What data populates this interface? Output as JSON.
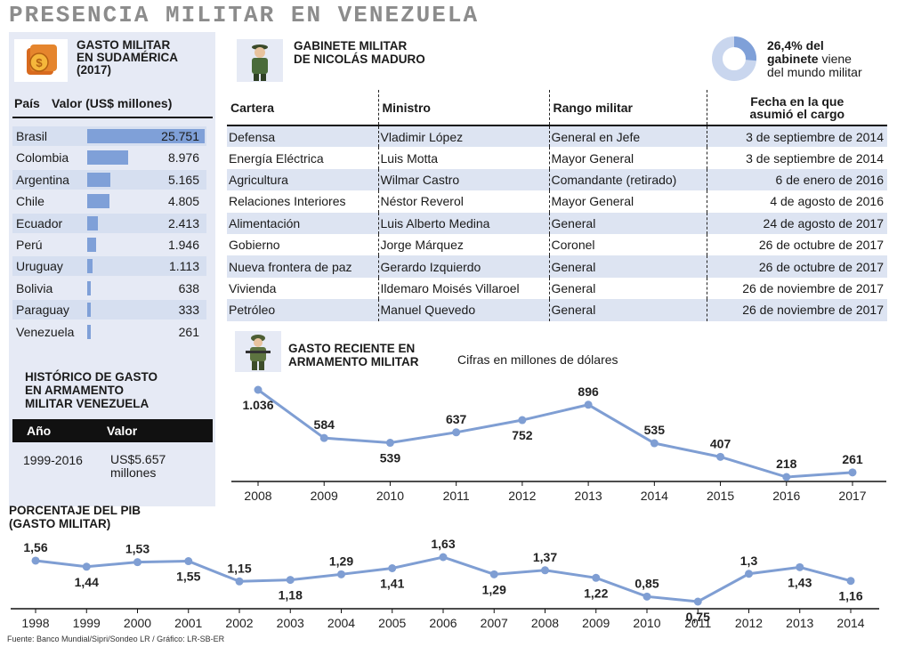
{
  "title": "PRESENCIA MILITAR EN VENEZUELA",
  "colors": {
    "accent": "#7fa0d8",
    "line": "#7f9ed3",
    "panel": "#e6eaf5",
    "row_alt": "#dde4f2"
  },
  "gasto_sudamerica": {
    "title_line1": "GASTO MILITAR",
    "title_line2": "EN SUDAMÉRICA",
    "title_line3": "(2017)",
    "col_country": "País",
    "col_value": "Valor (US$ millones)",
    "icon": "coin-stack-icon",
    "rows": [
      {
        "country": "Brasil",
        "value": "25.751",
        "num": 25751
      },
      {
        "country": "Colombia",
        "value": "8.976",
        "num": 8976
      },
      {
        "country": "Argentina",
        "value": "5.165",
        "num": 5165
      },
      {
        "country": "Chile",
        "value": "4.805",
        "num": 4805
      },
      {
        "country": "Ecuador",
        "value": "2.413",
        "num": 2413
      },
      {
        "country": "Perú",
        "value": "1.946",
        "num": 1946
      },
      {
        "country": "Uruguay",
        "value": "1.113",
        "num": 1113
      },
      {
        "country": "Bolivia",
        "value": "638",
        "num": 638
      },
      {
        "country": "Paraguay",
        "value": "333",
        "num": 333
      },
      {
        "country": "Venezuela",
        "value": "261",
        "num": 261
      }
    ]
  },
  "historico": {
    "title_line1": "HISTÓRICO DE GASTO",
    "title_line2": "EN ARMAMENTO",
    "title_line3": "MILITAR VENEZUELA",
    "col_year": "Año",
    "col_value": "Valor",
    "period": "1999-2016",
    "value_line1": "US$5.657",
    "value_line2": "millones"
  },
  "gabinete": {
    "title_line1": "GABINETE MILITAR",
    "title_line2": "DE NICOLÁS MADURO",
    "icon": "soldier-icon",
    "stat_pct": "26,4% del",
    "stat_bold": "gabinete",
    "stat_rest1": "viene",
    "stat_rest2": "del mundo militar",
    "stat_fraction": 0.264,
    "headers": {
      "cartera": "Cartera",
      "ministro": "Ministro",
      "rango": "Rango militar",
      "fecha_line1": "Fecha en la que",
      "fecha_line2": "asumió el cargo"
    },
    "rows": [
      {
        "cartera": "Defensa",
        "ministro": "Vladimir López",
        "rango": "General en Jefe",
        "fecha": "3 de septiembre de 2014"
      },
      {
        "cartera": "Energía Eléctrica",
        "ministro": "Luis Motta",
        "rango": "Mayor General",
        "fecha": "3 de septiembre de 2014"
      },
      {
        "cartera": "Agricultura",
        "ministro": "Wilmar Castro",
        "rango": "Comandante (retirado)",
        "fecha": "6 de enero de 2016"
      },
      {
        "cartera": "Relaciones Interiores",
        "ministro": "Néstor Reverol",
        "rango": "Mayor General",
        "fecha": "4 de agosto de 2016"
      },
      {
        "cartera": "Alimentación",
        "ministro": "Luis Alberto Medina",
        "rango": "General",
        "fecha": "24 de agosto de 2017"
      },
      {
        "cartera": "Gobierno",
        "ministro": "Jorge Márquez",
        "rango": "Coronel",
        "fecha": "26 de octubre de 2017"
      },
      {
        "cartera": "Nueva frontera de paz",
        "ministro": "Gerardo Izquierdo",
        "rango": "General",
        "fecha": "26 de octubre de 2017"
      },
      {
        "cartera": "Vivienda",
        "ministro": "Ildemaro Moisés Villaroel",
        "rango": "General",
        "fecha": "26 de noviembre de 2017"
      },
      {
        "cartera": "Petróleo",
        "ministro": "Manuel Quevedo",
        "rango": "General",
        "fecha": "26 de noviembre de 2017"
      }
    ]
  },
  "armamento_header": {
    "title_line1": "GASTO RECIENTE EN",
    "title_line2": "ARMAMENTO MILITAR",
    "subtitle": "Cifras en millones de dólares",
    "icon": "armed-soldier-icon"
  },
  "pib_header": {
    "title_line1": "PORCENTAJE DEL PIB",
    "title_line2": "(GASTO MILITAR)"
  },
  "source": "Fuente: Banco Mundial/Sipri/Sondeo LR / Gráfico: LR-SB-ER",
  "chart_data": [
    {
      "type": "line",
      "title": "GASTO RECIENTE EN ARMAMENTO MILITAR",
      "subtitle": "Cifras en millones de dólares",
      "categories": [
        "2008",
        "2009",
        "2010",
        "2011",
        "2012",
        "2013",
        "2014",
        "2015",
        "2016",
        "2017"
      ],
      "values": [
        1036,
        584,
        539,
        637,
        752,
        896,
        535,
        407,
        218,
        261
      ],
      "labels": [
        "1.036",
        "584",
        "539",
        "637",
        "752",
        "896",
        "535",
        "407",
        "218",
        "261"
      ],
      "label_pos": [
        "below",
        "above",
        "below",
        "above",
        "below",
        "above",
        "above",
        "above",
        "above",
        "above"
      ],
      "ylim": [
        218,
        1036
      ]
    },
    {
      "type": "line",
      "title": "PORCENTAJE DEL PIB (GASTO MILITAR)",
      "categories": [
        "1998",
        "1999",
        "2000",
        "2001",
        "2002",
        "2003",
        "2004",
        "2005",
        "2006",
        "2007",
        "2008",
        "2009",
        "2010",
        "2011",
        "2012",
        "2013",
        "2014"
      ],
      "values": [
        1.56,
        1.44,
        1.53,
        1.55,
        1.15,
        1.18,
        1.29,
        1.41,
        1.63,
        1.29,
        1.37,
        1.22,
        0.85,
        0.75,
        1.3,
        1.43,
        1.16
      ],
      "labels": [
        "1,56",
        "1,44",
        "1,53",
        "1,55",
        "1,15",
        "1,18",
        "1,29",
        "1,41",
        "1,63",
        "1,29",
        "1,37",
        "1,22",
        "0,85",
        "0,75",
        "1,3",
        "1,43",
        "1,16"
      ],
      "label_pos": [
        "above",
        "below",
        "above",
        "below",
        "above",
        "below",
        "above",
        "below",
        "above",
        "below",
        "above",
        "below",
        "above",
        "below",
        "above",
        "below",
        "below"
      ],
      "ylim": [
        0.75,
        1.63
      ]
    }
  ]
}
